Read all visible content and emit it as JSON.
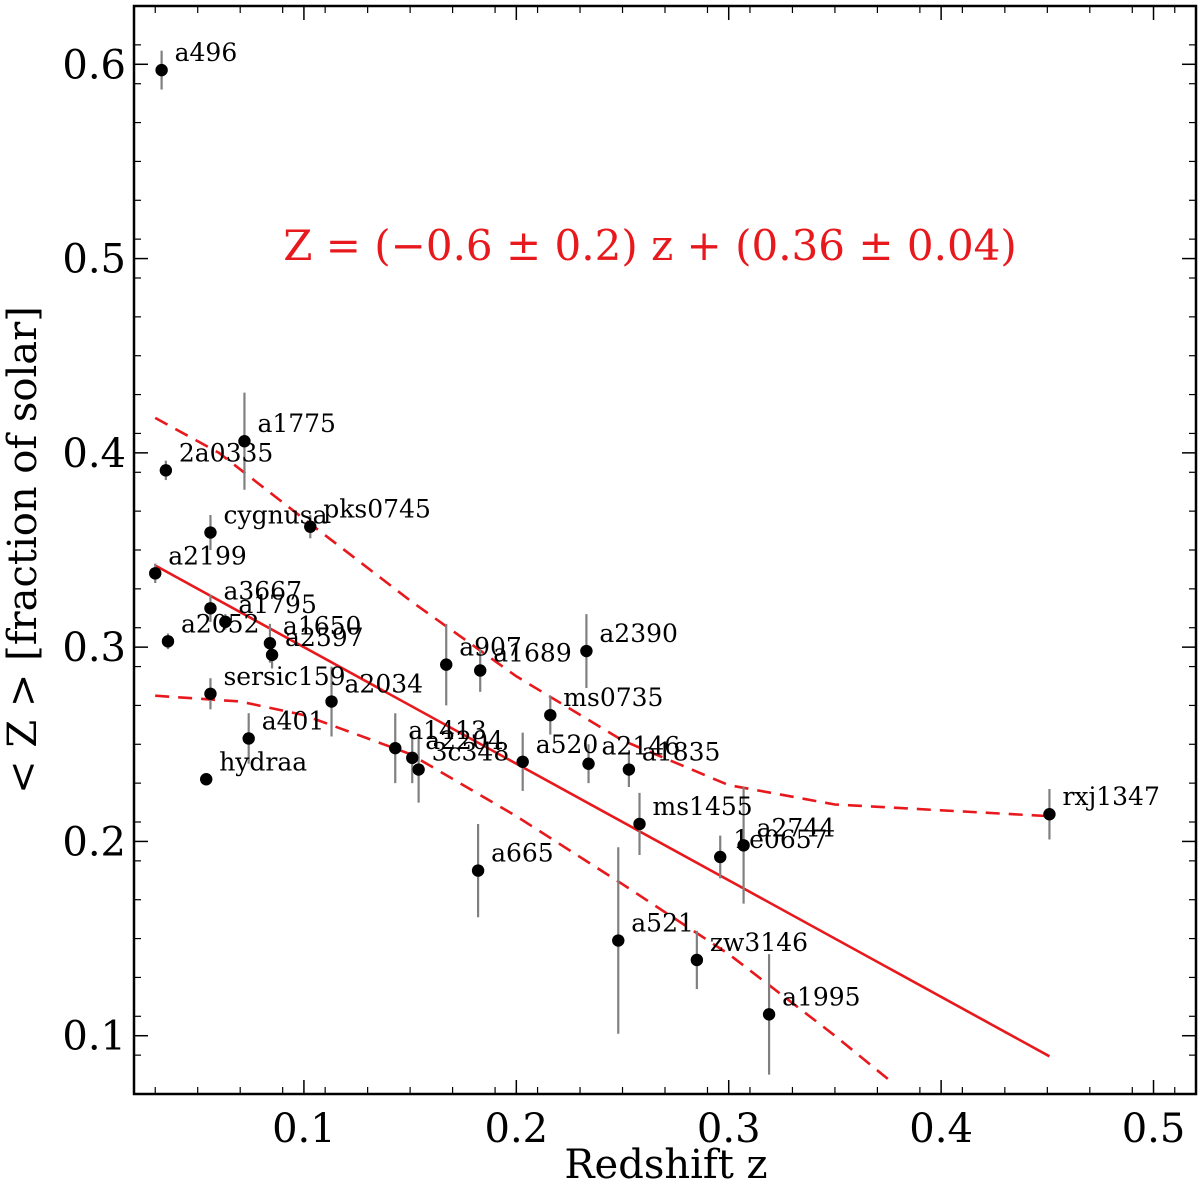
{
  "chart_data": {
    "type": "scatter",
    "xlabel": "Redshift z",
    "ylabel": "< Z > [fraction of solar]",
    "xlim": [
      0.02,
      0.52
    ],
    "ylim": [
      0.07,
      0.63
    ],
    "xticks": [
      0.1,
      0.2,
      0.3,
      0.4,
      0.5
    ],
    "xtick_labels": [
      "0.1",
      "0.2",
      "0.3",
      "0.4",
      "0.5"
    ],
    "yticks": [
      0.1,
      0.2,
      0.3,
      0.4,
      0.5,
      0.6
    ],
    "ytick_labels": [
      "0.1",
      "0.2",
      "0.3",
      "0.4",
      "0.5",
      "0.6"
    ],
    "grid": false,
    "colors": {
      "fit": "#e8191d",
      "points": "#000000",
      "errorbars": "#808080"
    },
    "annotation": "Z = (−0.6 ± 0.2) z + (0.36 ± 0.04)",
    "fit_line": {
      "slope": -0.6,
      "intercept": 0.36,
      "x_range": [
        0.03,
        0.451
      ]
    },
    "confidence_band": {
      "upper": [
        [
          0.03,
          0.418
        ],
        [
          0.06,
          0.4
        ],
        [
          0.1,
          0.366
        ],
        [
          0.15,
          0.324
        ],
        [
          0.2,
          0.285
        ],
        [
          0.25,
          0.252
        ],
        [
          0.3,
          0.229
        ],
        [
          0.35,
          0.219
        ],
        [
          0.4,
          0.216
        ],
        [
          0.451,
          0.213
        ]
      ],
      "lower": [
        [
          0.03,
          0.275
        ],
        [
          0.07,
          0.272
        ],
        [
          0.1,
          0.265
        ],
        [
          0.15,
          0.245
        ],
        [
          0.2,
          0.213
        ],
        [
          0.25,
          0.178
        ],
        [
          0.3,
          0.142
        ],
        [
          0.35,
          0.1
        ],
        [
          0.378,
          0.075
        ]
      ]
    },
    "points": [
      {
        "name": "a496",
        "x": 0.033,
        "y": 0.597,
        "err": 0.01
      },
      {
        "name": "a1775",
        "x": 0.072,
        "y": 0.406,
        "err": 0.025
      },
      {
        "name": "2a0335",
        "x": 0.035,
        "y": 0.391,
        "err": 0.005
      },
      {
        "name": "cygnusa",
        "x": 0.056,
        "y": 0.359,
        "err": 0.009
      },
      {
        "name": "pks0745",
        "x": 0.103,
        "y": 0.362,
        "err": 0.006
      },
      {
        "name": "a2199",
        "x": 0.03,
        "y": 0.338,
        "err": 0.005
      },
      {
        "name": "a3667",
        "x": 0.056,
        "y": 0.32,
        "err": 0.007
      },
      {
        "name": "a1795",
        "x": 0.063,
        "y": 0.313,
        "err": 0.004
      },
      {
        "name": "a2052",
        "x": 0.036,
        "y": 0.303,
        "err": 0.004
      },
      {
        "name": "a1650",
        "x": 0.084,
        "y": 0.302,
        "err": 0.01
      },
      {
        "name": "a2597",
        "x": 0.085,
        "y": 0.296,
        "err": 0.007
      },
      {
        "name": "a907",
        "x": 0.167,
        "y": 0.291,
        "err": 0.021
      },
      {
        "name": "a1689",
        "x": 0.183,
        "y": 0.288,
        "err": 0.011
      },
      {
        "name": "a2390",
        "x": 0.233,
        "y": 0.298,
        "err": 0.019
      },
      {
        "name": "sersic159",
        "x": 0.056,
        "y": 0.276,
        "err": 0.008
      },
      {
        "name": "a2034",
        "x": 0.113,
        "y": 0.272,
        "err": 0.018
      },
      {
        "name": "ms0735",
        "x": 0.216,
        "y": 0.265,
        "err": 0.01
      },
      {
        "name": "a401",
        "x": 0.074,
        "y": 0.253,
        "err": 0.013
      },
      {
        "name": "a1413",
        "x": 0.143,
        "y": 0.248,
        "err": 0.018
      },
      {
        "name": "a2204",
        "x": 0.151,
        "y": 0.243,
        "err": 0.013
      },
      {
        "name": "3c348",
        "x": 0.154,
        "y": 0.237,
        "err": 0.017
      },
      {
        "name": "a520",
        "x": 0.203,
        "y": 0.241,
        "err": 0.015
      },
      {
        "name": "a2146",
        "x": 0.234,
        "y": 0.24,
        "err": 0.01
      },
      {
        "name": "a1835",
        "x": 0.253,
        "y": 0.237,
        "err": 0.009
      },
      {
        "name": "hydraa",
        "x": 0.054,
        "y": 0.232,
        "err": 0.003
      },
      {
        "name": "ms1455",
        "x": 0.258,
        "y": 0.209,
        "err": 0.016
      },
      {
        "name": "1e0657",
        "x": 0.296,
        "y": 0.192,
        "err": 0.011
      },
      {
        "name": "a2744",
        "x": 0.307,
        "y": 0.198,
        "err": 0.03
      },
      {
        "name": "rxj1347",
        "x": 0.451,
        "y": 0.214,
        "err": 0.013
      },
      {
        "name": "a665",
        "x": 0.182,
        "y": 0.185,
        "err": 0.024
      },
      {
        "name": "a521",
        "x": 0.248,
        "y": 0.149,
        "err": 0.048
      },
      {
        "name": "zw3146",
        "x": 0.285,
        "y": 0.139,
        "err": 0.015
      },
      {
        "name": "a1995",
        "x": 0.319,
        "y": 0.111,
        "err": 0.031
      }
    ]
  }
}
